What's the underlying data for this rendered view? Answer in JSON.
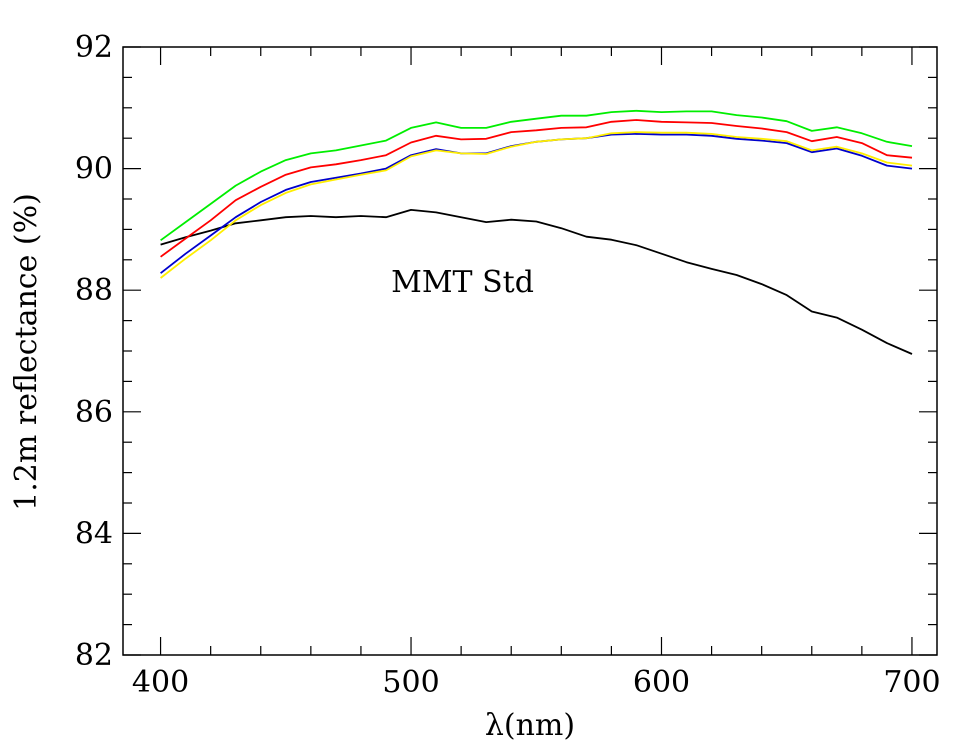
{
  "chart_data": {
    "type": "line",
    "xlabel": "λ(nm)",
    "ylabel": "1.2m reflectance (%)",
    "xlim": [
      385,
      710
    ],
    "ylim": [
      82,
      92
    ],
    "x_ticks": [
      400,
      500,
      600,
      700
    ],
    "x_tick_labels": [
      "400",
      "500",
      "600",
      "700"
    ],
    "y_ticks": [
      82,
      84,
      86,
      88,
      90,
      92
    ],
    "y_tick_labels": [
      "82",
      "84",
      "86",
      "88",
      "90",
      "92"
    ],
    "grid": false,
    "annotations": [
      {
        "text": "MMT Std",
        "x": 520,
        "y": 88.0
      }
    ],
    "series": [
      {
        "color": "#000000",
        "x": [
          400,
          410,
          420,
          430,
          440,
          450,
          460,
          470,
          480,
          490,
          500,
          510,
          520,
          530,
          540,
          550,
          560,
          570,
          580,
          590,
          600,
          610,
          620,
          630,
          640,
          650,
          660,
          670,
          680,
          690,
          700
        ],
        "values": [
          88.75,
          88.87,
          88.98,
          89.1,
          89.15,
          89.2,
          89.22,
          89.2,
          89.22,
          89.2,
          89.32,
          89.28,
          89.2,
          89.12,
          89.16,
          89.13,
          89.02,
          88.88,
          88.83,
          88.74,
          88.6,
          88.46,
          88.35,
          88.25,
          88.1,
          87.92,
          87.65,
          87.55,
          87.35,
          87.13,
          86.95
        ]
      },
      {
        "color": "#0000cc",
        "x": [
          400,
          410,
          420,
          430,
          440,
          450,
          460,
          470,
          480,
          490,
          500,
          510,
          520,
          530,
          540,
          550,
          560,
          570,
          580,
          590,
          600,
          610,
          620,
          630,
          640,
          650,
          660,
          670,
          680,
          690,
          700
        ],
        "values": [
          88.28,
          88.6,
          88.9,
          89.2,
          89.45,
          89.65,
          89.78,
          89.85,
          89.92,
          90.0,
          90.22,
          90.32,
          90.25,
          90.25,
          90.37,
          90.44,
          90.48,
          90.5,
          90.56,
          90.57,
          90.56,
          90.56,
          90.54,
          90.49,
          90.46,
          90.42,
          90.27,
          90.33,
          90.21,
          90.05,
          90.0
        ]
      },
      {
        "color": "#ffee00",
        "x": [
          400,
          410,
          420,
          430,
          440,
          450,
          460,
          470,
          480,
          490,
          500,
          510,
          520,
          530,
          540,
          550,
          560,
          570,
          580,
          590,
          600,
          610,
          620,
          630,
          640,
          650,
          660,
          670,
          680,
          690,
          700
        ],
        "values": [
          88.2,
          88.52,
          88.82,
          89.15,
          89.4,
          89.6,
          89.74,
          89.82,
          89.9,
          89.97,
          90.2,
          90.3,
          90.25,
          90.24,
          90.36,
          90.44,
          90.48,
          90.5,
          90.58,
          90.6,
          90.59,
          90.59,
          90.57,
          90.52,
          90.49,
          90.45,
          90.3,
          90.36,
          90.25,
          90.1,
          90.05
        ]
      },
      {
        "color": "#ff0000",
        "x": [
          400,
          410,
          420,
          430,
          440,
          450,
          460,
          470,
          480,
          490,
          500,
          510,
          520,
          530,
          540,
          550,
          560,
          570,
          580,
          590,
          600,
          610,
          620,
          630,
          640,
          650,
          660,
          670,
          680,
          690,
          700
        ],
        "values": [
          88.55,
          88.85,
          89.15,
          89.48,
          89.7,
          89.9,
          90.02,
          90.07,
          90.14,
          90.22,
          90.43,
          90.54,
          90.48,
          90.49,
          90.6,
          90.63,
          90.67,
          90.68,
          90.77,
          90.8,
          90.77,
          90.76,
          90.75,
          90.7,
          90.66,
          90.6,
          90.45,
          90.52,
          90.42,
          90.22,
          90.18
        ]
      },
      {
        "color": "#00ee00",
        "x": [
          400,
          410,
          420,
          430,
          440,
          450,
          460,
          470,
          480,
          490,
          500,
          510,
          520,
          530,
          540,
          550,
          560,
          570,
          580,
          590,
          600,
          610,
          620,
          630,
          640,
          650,
          660,
          670,
          680,
          690,
          700
        ],
        "values": [
          88.82,
          89.12,
          89.42,
          89.72,
          89.95,
          90.14,
          90.25,
          90.3,
          90.38,
          90.46,
          90.67,
          90.76,
          90.67,
          90.67,
          90.77,
          90.82,
          90.87,
          90.87,
          90.93,
          90.95,
          90.93,
          90.94,
          90.94,
          90.88,
          90.84,
          90.78,
          90.62,
          90.68,
          90.58,
          90.44,
          90.37
        ]
      }
    ]
  }
}
